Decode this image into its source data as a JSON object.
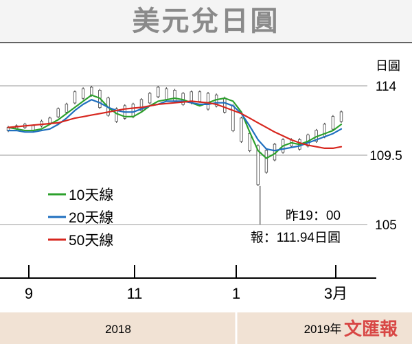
{
  "chart_data": {
    "type": "line",
    "title": "美元兌日圓",
    "unit": "日圓",
    "y_ticks": [
      114,
      109.5,
      105
    ],
    "ylim": [
      104.5,
      115.5
    ],
    "x_ticks": [
      "9",
      "11",
      "1",
      "3月"
    ],
    "years": [
      "2018",
      "2019年"
    ],
    "grid": "horizontal",
    "legend_position": "left",
    "series": [
      {
        "name": "10天線",
        "color": "#2ca02c",
        "values": [
          111.3,
          111.2,
          111.1,
          111.1,
          111.2,
          111.5,
          111.8,
          112.2,
          112.6,
          113.0,
          113.4,
          113.2,
          112.6,
          112.2,
          112.0,
          112.0,
          112.3,
          112.7,
          113.0,
          113.1,
          113.2,
          113.1,
          112.9,
          112.7,
          112.9,
          113.1,
          113.2,
          113.0,
          112.3,
          111.0,
          109.8,
          109.3,
          109.6,
          110.1,
          110.3,
          110.2,
          110.4,
          110.7,
          110.9,
          111.1,
          111.5
        ]
      },
      {
        "name": "20天線",
        "color": "#1f6fbf",
        "values": [
          111.1,
          111.1,
          111.0,
          111.0,
          111.1,
          111.2,
          111.5,
          111.9,
          112.4,
          112.8,
          113.1,
          112.9,
          112.6,
          112.4,
          112.3,
          112.3,
          112.5,
          112.7,
          112.8,
          113.0,
          113.0,
          113.0,
          112.9,
          112.8,
          112.8,
          112.9,
          112.9,
          112.7,
          112.2,
          111.4,
          110.5,
          109.9,
          109.8,
          109.9,
          110.0,
          110.1,
          110.3,
          110.5,
          110.7,
          110.9,
          111.2
        ]
      },
      {
        "name": "50天線",
        "color": "#d7261e",
        "values": [
          111.3,
          111.35,
          111.4,
          111.45,
          111.5,
          111.55,
          111.6,
          111.75,
          111.9,
          112.0,
          112.1,
          112.2,
          112.3,
          112.4,
          112.5,
          112.55,
          112.6,
          112.7,
          112.8,
          112.85,
          112.9,
          112.95,
          113.0,
          112.95,
          112.9,
          112.8,
          112.6,
          112.4,
          112.2,
          111.9,
          111.6,
          111.3,
          111.0,
          110.75,
          110.5,
          110.3,
          110.15,
          110.05,
          109.95,
          109.95,
          110.05
        ]
      }
    ],
    "candles": [
      [
        111.0,
        111.4
      ],
      [
        111.1,
        111.5
      ],
      [
        111.2,
        111.6
      ],
      [
        111.0,
        111.5
      ],
      [
        111.3,
        111.8
      ],
      [
        111.5,
        112.0
      ],
      [
        111.9,
        112.6
      ],
      [
        112.2,
        112.9
      ],
      [
        112.8,
        113.7
      ],
      [
        113.1,
        113.9
      ],
      [
        113.3,
        114.0
      ],
      [
        112.5,
        113.8
      ],
      [
        112.0,
        113.3
      ],
      [
        111.6,
        112.6
      ],
      [
        111.8,
        112.8
      ],
      [
        111.9,
        112.9
      ],
      [
        112.3,
        113.2
      ],
      [
        112.8,
        113.6
      ],
      [
        113.2,
        114.0
      ],
      [
        113.0,
        113.9
      ],
      [
        112.9,
        113.8
      ],
      [
        112.7,
        113.6
      ],
      [
        112.8,
        113.7
      ],
      [
        112.9,
        113.7
      ],
      [
        112.4,
        113.6
      ],
      [
        112.6,
        113.5
      ],
      [
        112.2,
        113.3
      ],
      [
        111.0,
        112.8
      ],
      [
        110.3,
        112.0
      ],
      [
        109.7,
        111.0
      ],
      [
        107.5,
        110.2
      ],
      [
        108.3,
        109.9
      ],
      [
        109.1,
        110.3
      ],
      [
        109.6,
        110.6
      ],
      [
        110.0,
        110.6
      ],
      [
        109.8,
        110.6
      ],
      [
        110.0,
        110.9
      ],
      [
        110.3,
        111.2
      ],
      [
        110.6,
        111.6
      ],
      [
        111.1,
        112.1
      ],
      [
        111.6,
        112.4
      ]
    ],
    "spike": {
      "index": 30,
      "low": 105.0
    },
    "annotation": {
      "line1": "昨19：00",
      "line2": "報：111.94日圓"
    }
  },
  "publisher": "文匯報"
}
